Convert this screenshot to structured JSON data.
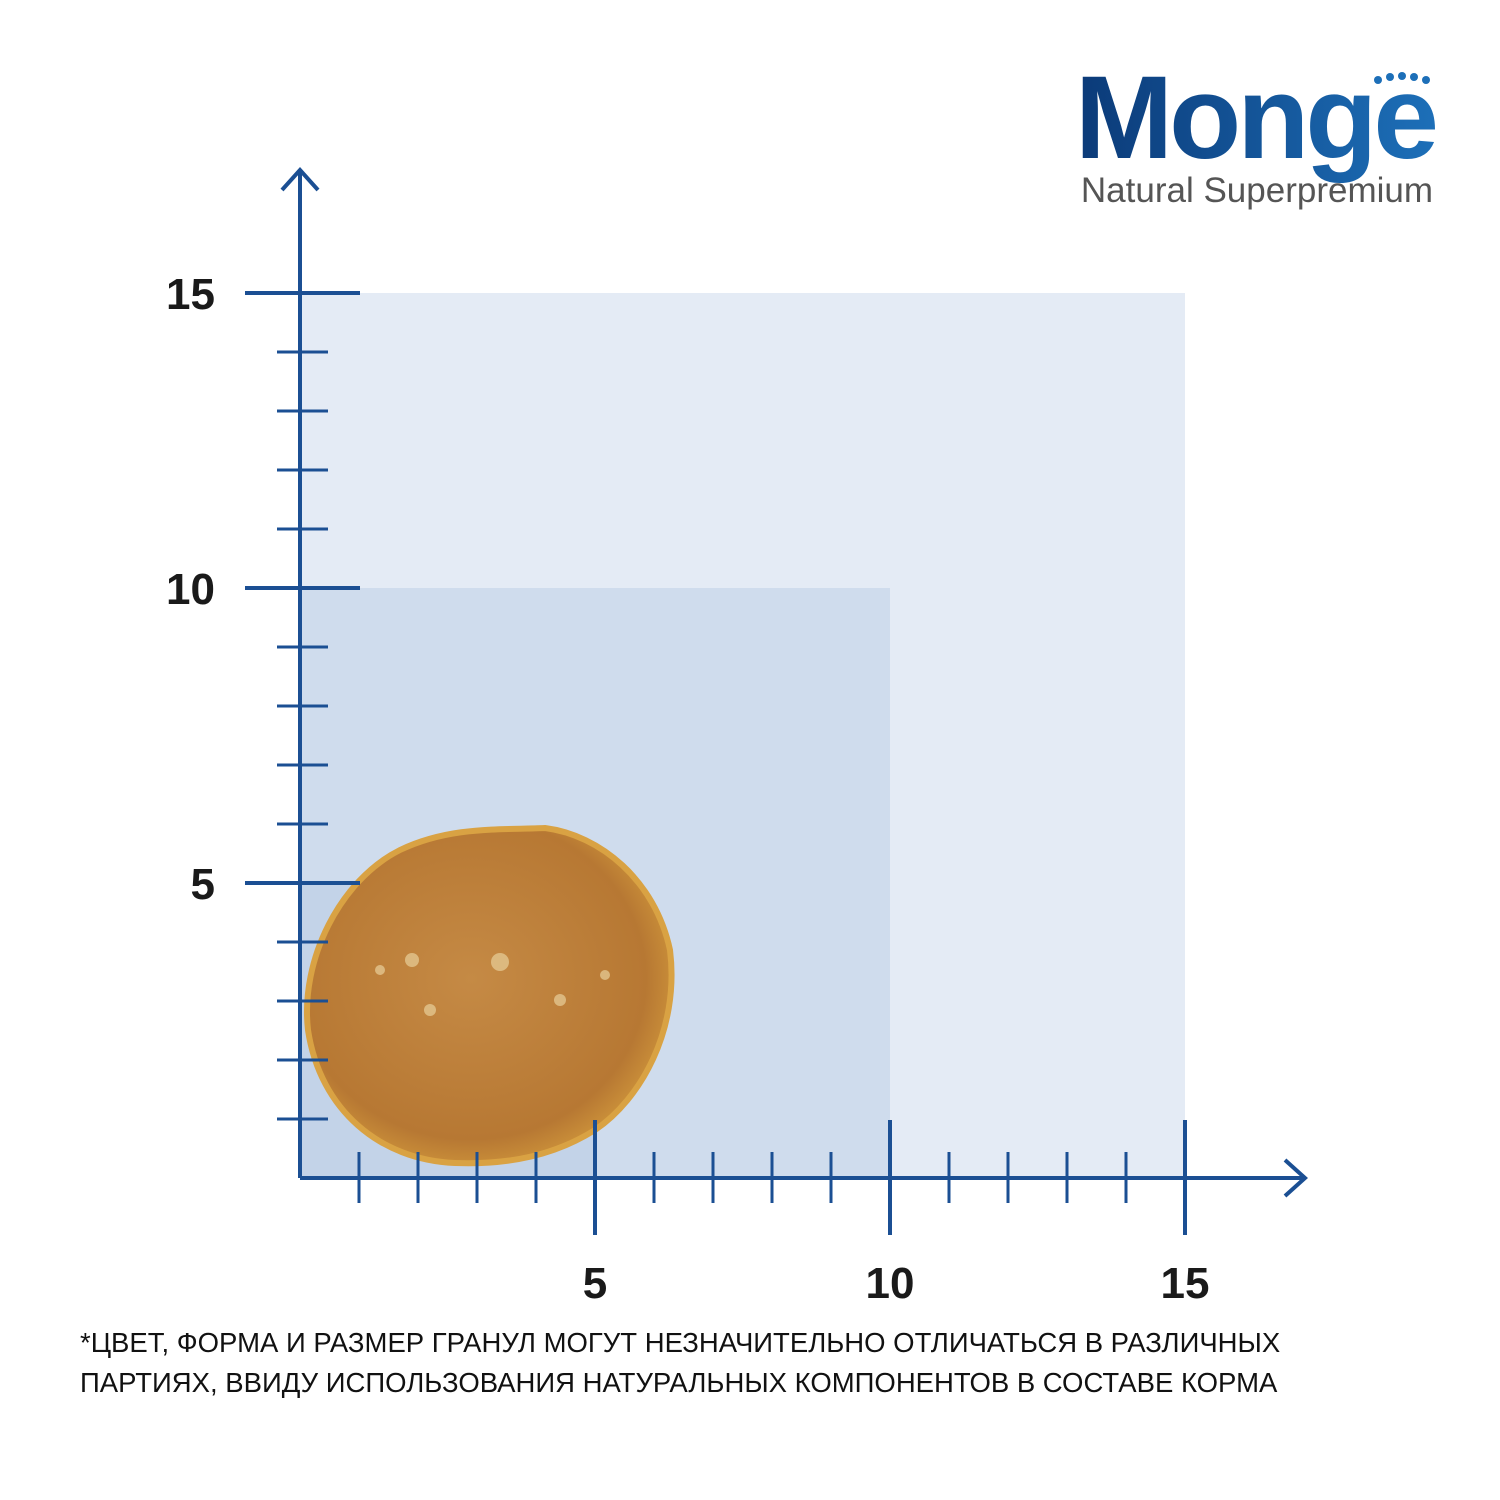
{
  "logo": {
    "brand": "Monge",
    "tagline": "Natural Superpremium"
  },
  "x_axis": {
    "ticks": [
      5,
      10,
      15
    ]
  },
  "y_axis": {
    "ticks": [
      5,
      10,
      15
    ]
  },
  "note": {
    "lines": [
      "*ЦВЕТ, ФОРМА И РАЗМЕР ГРАНУЛ МОГУТ НЕЗНАЧИТЕЛЬНО ОТЛИЧАТЬСЯ  В РАЗЛИЧНЫХ",
      "ПАРТИЯХ, ВВИДУ ИСПОЛЬЗОВАНИЯ НАТУРАЛЬНЫХ КОМПОНЕНТОВ В СОСТАВЕ  КОРМА"
    ]
  }
}
